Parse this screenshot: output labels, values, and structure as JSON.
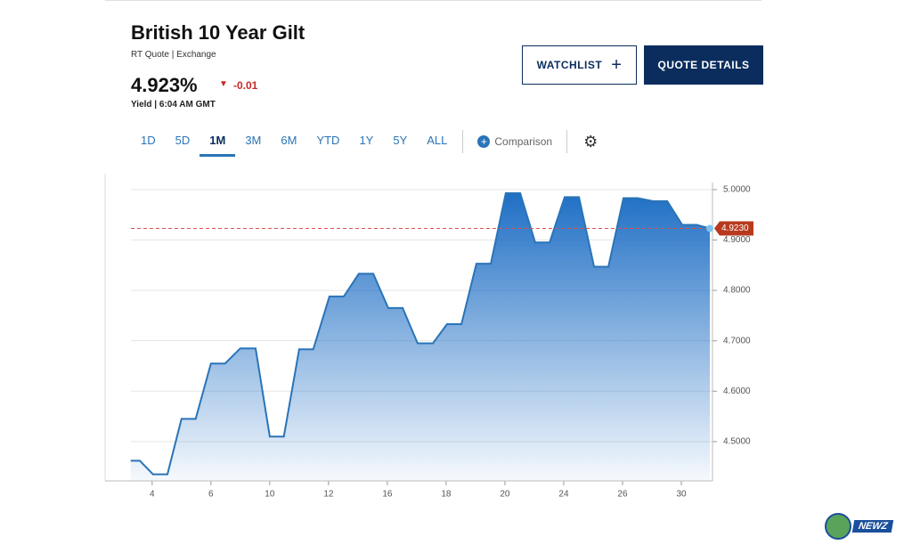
{
  "header": {
    "title": "British 10 Year Gilt",
    "subtitle": "RT Quote | Exchange",
    "price": "4.923%",
    "change": "-0.01",
    "yield_label": "Yield | 6:04 AM GMT"
  },
  "buttons": [
    "WATCHLIST",
    "QUOTE DETAILS"
  ],
  "tabs": [
    "1D",
    "5D",
    "1M",
    "3M",
    "6M",
    "YTD",
    "1Y",
    "5Y",
    "ALL"
  ],
  "active_tab": 2,
  "comparison": "Comparison",
  "logo": "NEWZ",
  "chart_data": {
    "type": "area",
    "x": [
      -0.73,
      -0.42,
      0.03,
      0.52,
      1.0,
      1.48,
      2.0,
      2.48,
      3.0,
      3.52,
      4.0,
      4.48,
      5.0,
      5.48,
      6.03,
      6.52,
      7.03,
      7.52,
      8.03,
      8.52,
      9.03,
      9.55,
      10.03,
      10.52,
      11.03,
      11.52,
      12.03,
      12.52,
      13.03,
      13.52,
      14.03,
      14.52,
      15.03,
      15.52,
      16.03,
      16.52,
      17.03,
      17.52,
      18.03,
      18.52,
      18.97
    ],
    "values": [
      4.462,
      4.462,
      4.435,
      4.435,
      4.545,
      4.545,
      4.655,
      4.655,
      4.685,
      4.685,
      4.51,
      4.51,
      4.683,
      4.683,
      4.788,
      4.788,
      4.833,
      4.833,
      4.765,
      4.765,
      4.695,
      4.695,
      4.733,
      4.733,
      4.853,
      4.853,
      4.993,
      4.993,
      4.895,
      4.895,
      4.985,
      4.985,
      4.847,
      4.847,
      4.983,
      4.983,
      4.977,
      4.977,
      4.93,
      4.93,
      4.923
    ],
    "color": "#2a74b7",
    "xlim": [
      -1.6,
      19.06
    ],
    "ylim": [
      4.422,
      5.014
    ],
    "xticks": [
      {
        "value": 0,
        "label": "4"
      },
      {
        "value": 2,
        "label": "6"
      },
      {
        "value": 4,
        "label": "10"
      },
      {
        "value": 6,
        "label": "12"
      },
      {
        "value": 8,
        "label": "16"
      },
      {
        "value": 10,
        "label": "18"
      },
      {
        "value": 12,
        "label": "20"
      },
      {
        "value": 14,
        "label": "24"
      },
      {
        "value": 16,
        "label": "26"
      },
      {
        "value": 18,
        "label": "30"
      }
    ],
    "yticks": [
      {
        "value": 4.5,
        "label": "4.5000"
      },
      {
        "value": 4.6,
        "label": "4.6000"
      },
      {
        "value": 4.7,
        "label": "4.7000"
      },
      {
        "value": 4.8,
        "label": "4.8000"
      },
      {
        "value": 4.9,
        "label": "4.9000"
      },
      {
        "value": 5.0,
        "label": "5.0000"
      }
    ],
    "grid": true,
    "last_value": 4.923,
    "last_value_label": "4.9230"
  }
}
